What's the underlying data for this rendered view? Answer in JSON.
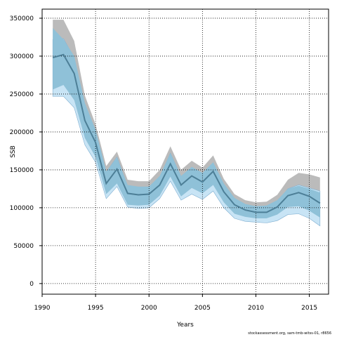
{
  "chart_data": {
    "type": "area",
    "xlabel": "Years",
    "ylabel": "SSB",
    "xlim": [
      1990,
      2016.8
    ],
    "ylim": [
      -14000,
      362000
    ],
    "xticks": [
      1990,
      1995,
      2000,
      2005,
      2010,
      2015
    ],
    "yticks": [
      0,
      50000,
      100000,
      150000,
      200000,
      250000,
      300000,
      350000
    ],
    "grid": true,
    "x": [
      1991,
      1992,
      1993,
      1994,
      1995,
      1996,
      1997,
      1998,
      1999,
      2000,
      2001,
      2002,
      2003,
      2004,
      2005,
      2006,
      2007,
      2008,
      2009,
      2010,
      2011,
      2012,
      2013,
      2014,
      2015,
      2016
    ],
    "series": [
      {
        "values": [
          298000,
          302000,
          277000,
          215000,
          186000,
          132000,
          151000,
          119000,
          117000,
          118000,
          130000,
          158000,
          130000,
          142000,
          134000,
          148000,
          121000,
          104000,
          97000,
          94000,
          94000,
          101000,
          116000,
          120000,
          115000,
          106000
        ],
        "color": "#4d7f97"
      }
    ],
    "bands": [
      {
        "color": "#bbbbbb",
        "upper": [
          348000,
          348000,
          320000,
          248000,
          210000,
          155000,
          174000,
          137000,
          135000,
          135000,
          150000,
          181000,
          150000,
          162000,
          153000,
          169000,
          138000,
          118000,
          110000,
          107000,
          108000,
          117000,
          137000,
          146000,
          144000,
          140000
        ],
        "lower": [
          253000,
          260000,
          240000,
          190000,
          165000,
          116000,
          130000,
          104000,
          102000,
          103000,
          114000,
          139000,
          113000,
          124000,
          117000,
          128000,
          105000,
          90000,
          86000,
          84000,
          84000,
          89000,
          101000,
          104000,
          96000,
          82000
        ]
      },
      {
        "color": "#c8e4f5",
        "upper": [
          322000,
          323000,
          298000,
          233000,
          200000,
          147000,
          167000,
          128000,
          126000,
          126000,
          140000,
          172000,
          141000,
          153000,
          145000,
          158000,
          130000,
          112000,
          104000,
          100000,
          100000,
          108000,
          125000,
          130000,
          126000,
          122000
        ],
        "lower": [
          247000,
          247000,
          232000,
          183000,
          160000,
          112000,
          128000,
          101000,
          99000,
          100000,
          112000,
          135000,
          110000,
          118000,
          111000,
          122000,
          100000,
          86000,
          82000,
          81000,
          80000,
          83000,
          91000,
          92000,
          86000,
          76000
        ]
      },
      {
        "color": "#8fc1d8",
        "upper": [
          337000,
          322000,
          300000,
          238000,
          203000,
          148000,
          166000,
          130000,
          128000,
          128000,
          142000,
          172000,
          142000,
          154000,
          146000,
          160000,
          132000,
          113000,
          105000,
          102000,
          103000,
          110000,
          125000,
          129000,
          125000,
          120000
        ],
        "lower": [
          256000,
          262000,
          242000,
          192000,
          167000,
          118000,
          132000,
          104000,
          103000,
          104000,
          116000,
          141000,
          115000,
          126000,
          119000,
          130000,
          107000,
          92000,
          88000,
          86000,
          86000,
          91000,
          101000,
          102000,
          96000,
          87000
        ]
      }
    ]
  },
  "footnote": "stockassessment.org, sam-tmb-witss-01, r8656"
}
